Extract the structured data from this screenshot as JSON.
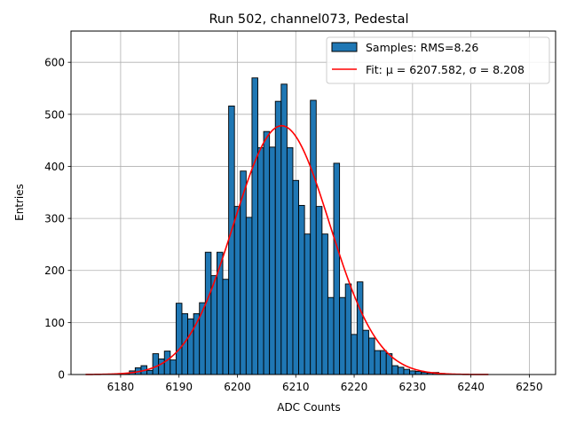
{
  "chart_data": {
    "type": "bar",
    "title": "Run 502, channel073, Pedestal",
    "xlabel": "ADC Counts",
    "ylabel": "Entries",
    "xlim": [
      6171.5,
      6254.5
    ],
    "ylim": [
      0,
      660
    ],
    "xticks": [
      6180,
      6190,
      6200,
      6210,
      6220,
      6230,
      6240,
      6250
    ],
    "yticks": [
      0,
      100,
      200,
      300,
      400,
      500,
      600
    ],
    "grid": true,
    "legend_position": "top-right",
    "colors": {
      "bars": "#1f77b4",
      "bar_edge": "#000000",
      "fit": "#ff0000",
      "grid": "#b0b0b0"
    },
    "histogram": {
      "name": "Samples: RMS=8.26",
      "bin_width": 1,
      "bins": [
        [
          6178,
          1
        ],
        [
          6179,
          1
        ],
        [
          6180,
          1
        ],
        [
          6181,
          2
        ],
        [
          6182,
          7
        ],
        [
          6183,
          13
        ],
        [
          6184,
          17
        ],
        [
          6185,
          8
        ],
        [
          6186,
          40
        ],
        [
          6187,
          30
        ],
        [
          6188,
          45
        ],
        [
          6189,
          28
        ],
        [
          6190,
          137
        ],
        [
          6191,
          117
        ],
        [
          6192,
          107
        ],
        [
          6193,
          117
        ],
        [
          6194,
          138
        ],
        [
          6195,
          235
        ],
        [
          6196,
          190
        ],
        [
          6197,
          235
        ],
        [
          6198,
          183
        ],
        [
          6199,
          516
        ],
        [
          6200,
          323
        ],
        [
          6201,
          391
        ],
        [
          6202,
          302
        ],
        [
          6203,
          570
        ],
        [
          6204,
          436
        ],
        [
          6205,
          467
        ],
        [
          6206,
          437
        ],
        [
          6207,
          525
        ],
        [
          6208,
          558
        ],
        [
          6209,
          436
        ],
        [
          6210,
          373
        ],
        [
          6211,
          325
        ],
        [
          6212,
          270
        ],
        [
          6213,
          527
        ],
        [
          6214,
          323
        ],
        [
          6215,
          270
        ],
        [
          6216,
          148
        ],
        [
          6217,
          406
        ],
        [
          6218,
          148
        ],
        [
          6219,
          174
        ],
        [
          6220,
          77
        ],
        [
          6221,
          178
        ],
        [
          6222,
          85
        ],
        [
          6223,
          70
        ],
        [
          6224,
          46
        ],
        [
          6225,
          46
        ],
        [
          6226,
          40
        ],
        [
          6227,
          17
        ],
        [
          6228,
          14
        ],
        [
          6229,
          10
        ],
        [
          6230,
          7
        ],
        [
          6231,
          6
        ],
        [
          6232,
          4
        ],
        [
          6233,
          3
        ],
        [
          6234,
          4
        ],
        [
          6235,
          2
        ],
        [
          6236,
          1
        ]
      ]
    },
    "fit": {
      "name": "Fit: μ = 6207.582, σ = 8.208",
      "mu": 6207.582,
      "sigma": 8.208,
      "amplitude": 478,
      "x_range": [
        6174,
        6243
      ]
    }
  }
}
